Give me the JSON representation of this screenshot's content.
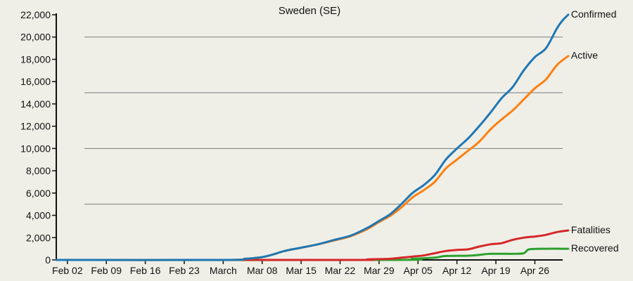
{
  "chart_data": {
    "type": "line",
    "title": "Sweden (SE)",
    "xlabel": "",
    "ylabel": "",
    "ylim": [
      0,
      22000
    ],
    "yticks": [
      0,
      2000,
      4000,
      6000,
      8000,
      10000,
      12000,
      14000,
      16000,
      18000,
      20000,
      22000
    ],
    "ytick_labels": [
      "0",
      "2,000",
      "4,000",
      "6,000",
      "8,000",
      "10,000",
      "12,000",
      "14,000",
      "16,000",
      "18,000",
      "20,000",
      "22,000"
    ],
    "gridlines": [
      5000,
      10000,
      15000,
      20000
    ],
    "x_range_days": [
      0,
      91
    ],
    "xticks": [
      {
        "day": 2,
        "label": "Feb 02"
      },
      {
        "day": 9,
        "label": "Feb 09"
      },
      {
        "day": 16,
        "label": "Feb 16"
      },
      {
        "day": 23,
        "label": "Feb 23"
      },
      {
        "day": 30,
        "label": "March"
      },
      {
        "day": 37,
        "label": "Mar 08"
      },
      {
        "day": 44,
        "label": "Mar 15"
      },
      {
        "day": 51,
        "label": "Mar 22"
      },
      {
        "day": 58,
        "label": "Mar 29"
      },
      {
        "day": 65,
        "label": "Apr 05"
      },
      {
        "day": 72,
        "label": "Apr 12"
      },
      {
        "day": 79,
        "label": "Apr 19"
      },
      {
        "day": 86,
        "label": "Apr 26"
      }
    ],
    "series": [
      {
        "name": "Confirmed",
        "color": "#1f77b4",
        "points": [
          [
            0,
            0
          ],
          [
            30,
            0
          ],
          [
            34,
            100
          ],
          [
            37,
            250
          ],
          [
            39,
            500
          ],
          [
            41,
            800
          ],
          [
            44,
            1100
          ],
          [
            47,
            1400
          ],
          [
            50,
            1800
          ],
          [
            53,
            2200
          ],
          [
            56,
            2900
          ],
          [
            58,
            3500
          ],
          [
            60,
            4100
          ],
          [
            62,
            5000
          ],
          [
            64,
            6000
          ],
          [
            66,
            6700
          ],
          [
            68,
            7600
          ],
          [
            70,
            9000
          ],
          [
            72,
            10000
          ],
          [
            74,
            10900
          ],
          [
            76,
            12000
          ],
          [
            78,
            13200
          ],
          [
            80,
            14500
          ],
          [
            82,
            15500
          ],
          [
            84,
            17000
          ],
          [
            86,
            18200
          ],
          [
            88,
            19000
          ],
          [
            90,
            20800
          ],
          [
            91,
            21500
          ],
          [
            92,
            22000
          ]
        ]
      },
      {
        "name": "Active",
        "color": "#ff7f0e",
        "points": [
          [
            0,
            0
          ],
          [
            30,
            0
          ],
          [
            34,
            100
          ],
          [
            37,
            250
          ],
          [
            39,
            500
          ],
          [
            41,
            800
          ],
          [
            44,
            1100
          ],
          [
            47,
            1400
          ],
          [
            50,
            1750
          ],
          [
            53,
            2150
          ],
          [
            56,
            2800
          ],
          [
            58,
            3400
          ],
          [
            60,
            3950
          ],
          [
            62,
            4700
          ],
          [
            64,
            5600
          ],
          [
            66,
            6250
          ],
          [
            68,
            7000
          ],
          [
            70,
            8200
          ],
          [
            72,
            9000
          ],
          [
            74,
            9800
          ],
          [
            76,
            10600
          ],
          [
            78,
            11700
          ],
          [
            80,
            12600
          ],
          [
            82,
            13400
          ],
          [
            84,
            14400
          ],
          [
            86,
            15400
          ],
          [
            88,
            16200
          ],
          [
            90,
            17500
          ],
          [
            92,
            18300
          ]
        ]
      },
      {
        "name": "Fatalities",
        "color": "#d62728",
        "points": [
          [
            0,
            0
          ],
          [
            52,
            0
          ],
          [
            56,
            50
          ],
          [
            60,
            100
          ],
          [
            62,
            200
          ],
          [
            64,
            300
          ],
          [
            66,
            400
          ],
          [
            68,
            600
          ],
          [
            70,
            800
          ],
          [
            72,
            900
          ],
          [
            74,
            950
          ],
          [
            76,
            1200
          ],
          [
            78,
            1400
          ],
          [
            80,
            1500
          ],
          [
            82,
            1800
          ],
          [
            84,
            2000
          ],
          [
            86,
            2100
          ],
          [
            88,
            2250
          ],
          [
            90,
            2500
          ],
          [
            92,
            2650
          ]
        ]
      },
      {
        "name": "Recovered",
        "color": "#2ca02c",
        "points": [
          [
            0,
            0
          ],
          [
            60,
            0
          ],
          [
            64,
            100
          ],
          [
            68,
            200
          ],
          [
            70,
            350
          ],
          [
            74,
            380
          ],
          [
            76,
            450
          ],
          [
            78,
            550
          ],
          [
            82,
            550
          ],
          [
            84,
            600
          ],
          [
            85,
            950
          ],
          [
            88,
            1000
          ],
          [
            92,
            1000
          ]
        ]
      }
    ]
  }
}
